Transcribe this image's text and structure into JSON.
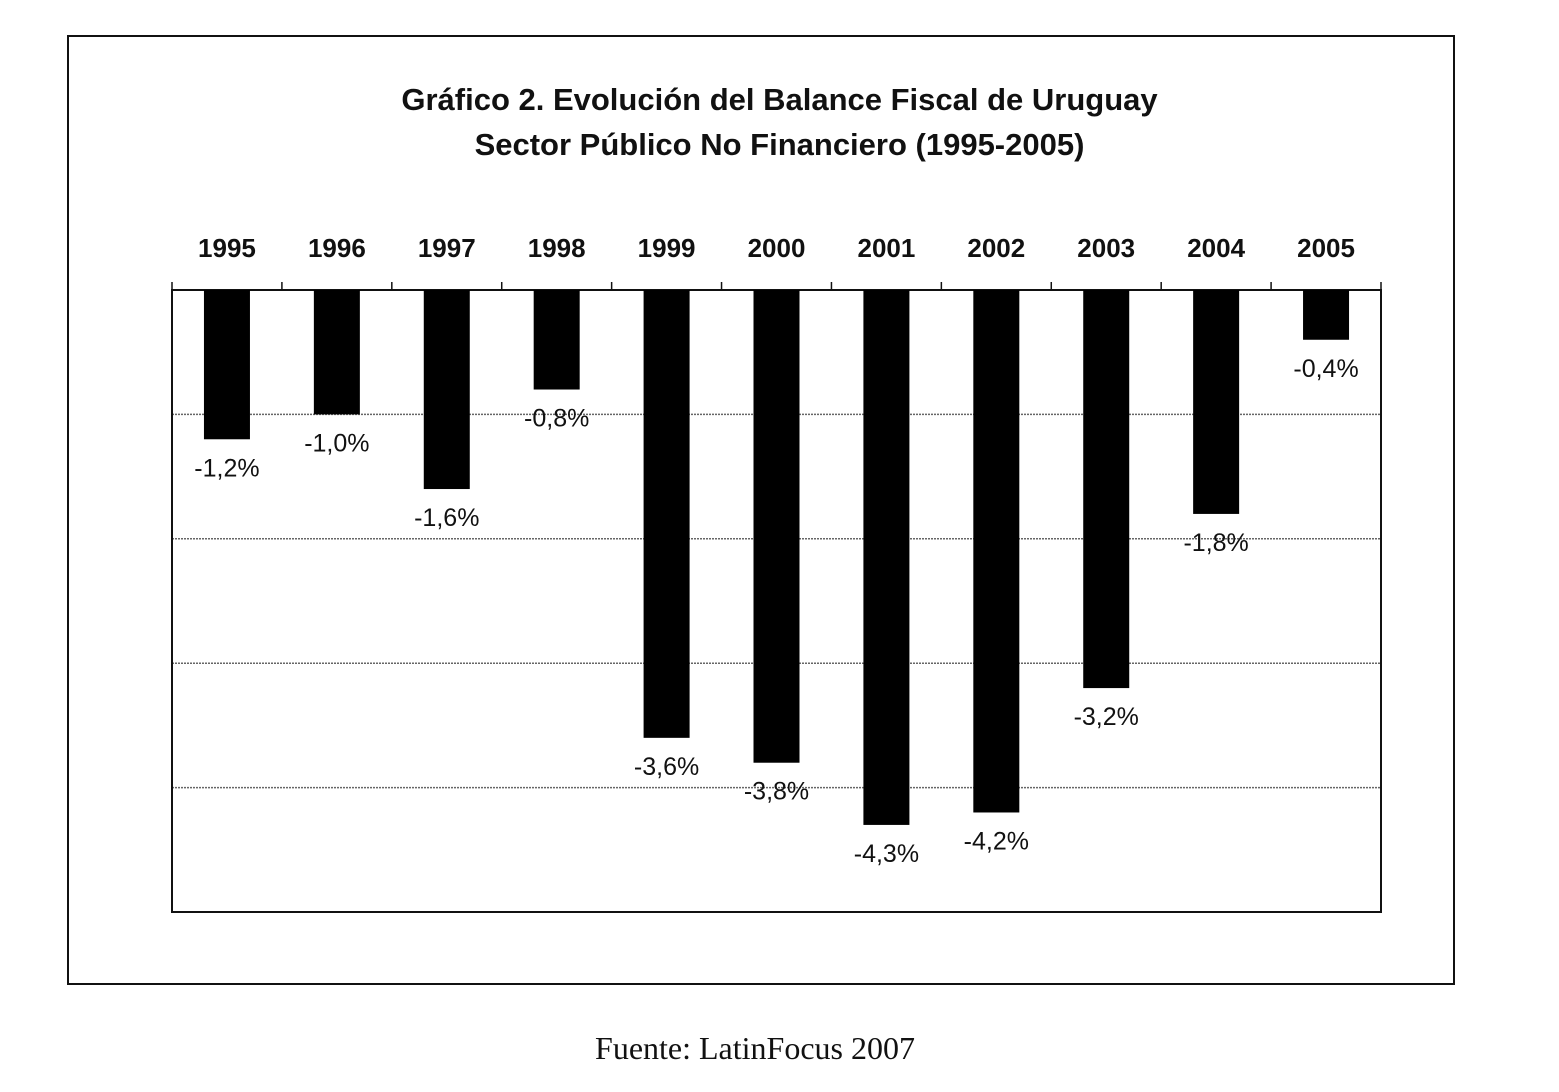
{
  "chart_data": {
    "type": "bar",
    "title": "Gráfico 2. Evolución del Balance Fiscal de Uruguay",
    "subtitle": "Sector Público No Financiero (1995-2005)",
    "categories": [
      "1995",
      "1996",
      "1997",
      "1998",
      "1999",
      "2000",
      "2001",
      "2002",
      "2003",
      "2004",
      "2005"
    ],
    "values": [
      -1.2,
      -1.0,
      -1.6,
      -0.8,
      -3.6,
      -3.8,
      -4.3,
      -4.2,
      -3.2,
      -1.8,
      -0.4
    ],
    "data_labels": [
      "-1,2%",
      "-1,0%",
      "-1,6%",
      "-0,8%",
      "-3,6%",
      "-3,8%",
      "-4,3%",
      "-4,2%",
      "-3,2%",
      "-1,8%",
      "-0,4%"
    ],
    "xlabel": "",
    "ylabel": "",
    "ylim": [
      -5,
      0
    ],
    "grid": true,
    "bar_color": "#000000"
  },
  "source": "Fuente: LatinFocus 2007"
}
